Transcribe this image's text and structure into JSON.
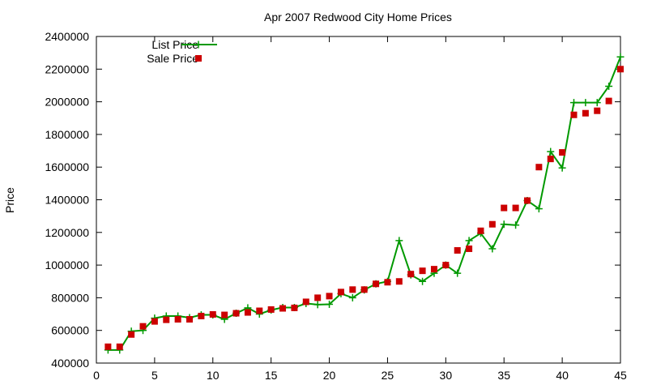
{
  "chart_data": {
    "type": "line",
    "title": "Apr 2007 Redwood City Home Prices",
    "xlabel": "",
    "ylabel": "Price",
    "xlim": [
      0,
      45
    ],
    "ylim": [
      400000,
      2400000
    ],
    "xticks": [
      "0",
      "5",
      "10",
      "15",
      "20",
      "25",
      "30",
      "35",
      "40",
      "45"
    ],
    "yticks": [
      "400000",
      "600000",
      "800000",
      "1000000",
      "1200000",
      "1400000",
      "1600000",
      "1800000",
      "2000000",
      "2200000",
      "2400000"
    ],
    "grid": false,
    "legend_position": "top-left",
    "x": [
      1,
      2,
      3,
      4,
      5,
      6,
      7,
      8,
      9,
      10,
      11,
      12,
      13,
      14,
      15,
      16,
      17,
      18,
      19,
      20,
      21,
      22,
      23,
      24,
      25,
      26,
      27,
      28,
      29,
      30,
      31,
      32,
      33,
      34,
      35,
      36,
      37,
      38,
      39,
      40,
      41,
      42,
      43,
      44,
      45
    ],
    "series": [
      {
        "name": "List Price",
        "style": "linespoints",
        "color": "#009900",
        "values": [
          480000,
          480000,
          595000,
          600000,
          675000,
          688000,
          688000,
          678000,
          695000,
          695000,
          668000,
          705000,
          738000,
          700000,
          725000,
          740000,
          740000,
          765000,
          758000,
          760000,
          825000,
          800000,
          848000,
          885000,
          900000,
          1150000,
          940000,
          900000,
          950000,
          1000000,
          950000,
          1150000,
          1195000,
          1100000,
          1250000,
          1245000,
          1395000,
          1345000,
          1695000,
          1595000,
          1995000,
          1995000,
          1995000,
          2095000,
          2275000
        ]
      },
      {
        "name": "Sale Price",
        "style": "points",
        "color": "#cc0000",
        "values": [
          500000,
          500000,
          575000,
          625000,
          655000,
          665000,
          668000,
          668000,
          688000,
          698000,
          695000,
          705000,
          710000,
          720000,
          728000,
          735000,
          738000,
          775000,
          800000,
          810000,
          835000,
          850000,
          850000,
          885000,
          895000,
          900000,
          945000,
          965000,
          975000,
          1000000,
          1090000,
          1100000,
          1210000,
          1250000,
          1350000,
          1350000,
          1395000,
          1600000,
          1650000,
          1690000,
          1920000,
          1930000,
          1945000,
          2005000,
          2200000
        ]
      }
    ]
  }
}
